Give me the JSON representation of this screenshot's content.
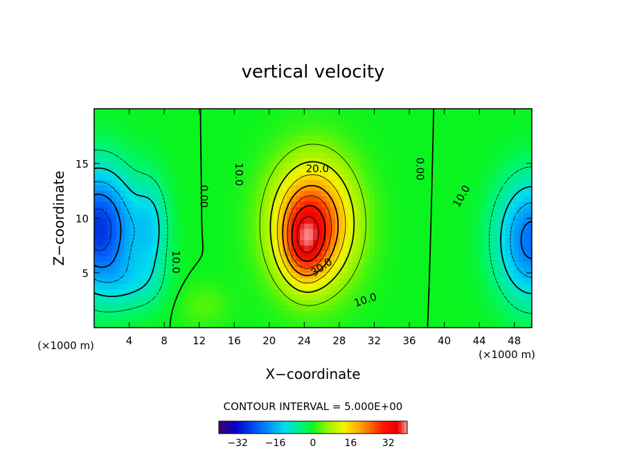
{
  "chart_data": {
    "type": "heatmap",
    "title": "vertical velocity",
    "xlabel": "X−coordinate",
    "ylabel": "Z−coordinate",
    "x_unit": "(×1000 m)",
    "x_unit_right": "(×1000 m)",
    "xlim": [
      0,
      50
    ],
    "ylim": [
      0,
      20
    ],
    "x_ticks": [
      "4",
      "8",
      "12",
      "16",
      "20",
      "24",
      "28",
      "32",
      "36",
      "40",
      "44",
      "48"
    ],
    "x_tick_values": [
      4,
      8,
      12,
      16,
      20,
      24,
      28,
      32,
      36,
      40,
      44,
      48
    ],
    "y_ticks": [
      "5",
      "10",
      "15"
    ],
    "y_tick_values": [
      5,
      10,
      15
    ],
    "contour_interval_text": "CONTOUR INTERVAL = 5.000E+00",
    "contour_interval": 5,
    "colorbar": {
      "range": [
        -40,
        40
      ],
      "ticks": [
        "−32",
        "−16",
        "0",
        "16",
        "32"
      ],
      "tick_values": [
        -32,
        -16,
        0,
        16,
        32
      ]
    },
    "features": [
      {
        "kind": "updraft",
        "x": 24.5,
        "z": 8.5,
        "peak": 37
      },
      {
        "kind": "downdraft",
        "x": 1,
        "z": 9,
        "peak": -28
      },
      {
        "kind": "downdraft",
        "x": 50,
        "z": 8,
        "peak": -22
      },
      {
        "kind": "downdraft",
        "x": 6.5,
        "z": 8,
        "peak": -16
      }
    ],
    "contour_labels": [
      {
        "text": "10.0",
        "x": 16.5,
        "z": 14,
        "rotate": 90
      },
      {
        "text": "20.0",
        "x": 25.5,
        "z": 14.5,
        "rotate": 0
      },
      {
        "text": "30.0",
        "x": 26,
        "z": 5.5,
        "rotate": -35
      },
      {
        "text": "10.0",
        "x": 31,
        "z": 2.5,
        "rotate": -18
      },
      {
        "text": "0.00",
        "x": 12.5,
        "z": 12,
        "rotate": 90
      },
      {
        "text": "0.00",
        "x": 37.2,
        "z": 14.5,
        "rotate": 90
      },
      {
        "text": "10.0",
        "x": 42,
        "z": 12,
        "rotate": -60
      },
      {
        "text": "10.0",
        "x": 9.3,
        "z": 6,
        "rotate": 90
      }
    ]
  }
}
